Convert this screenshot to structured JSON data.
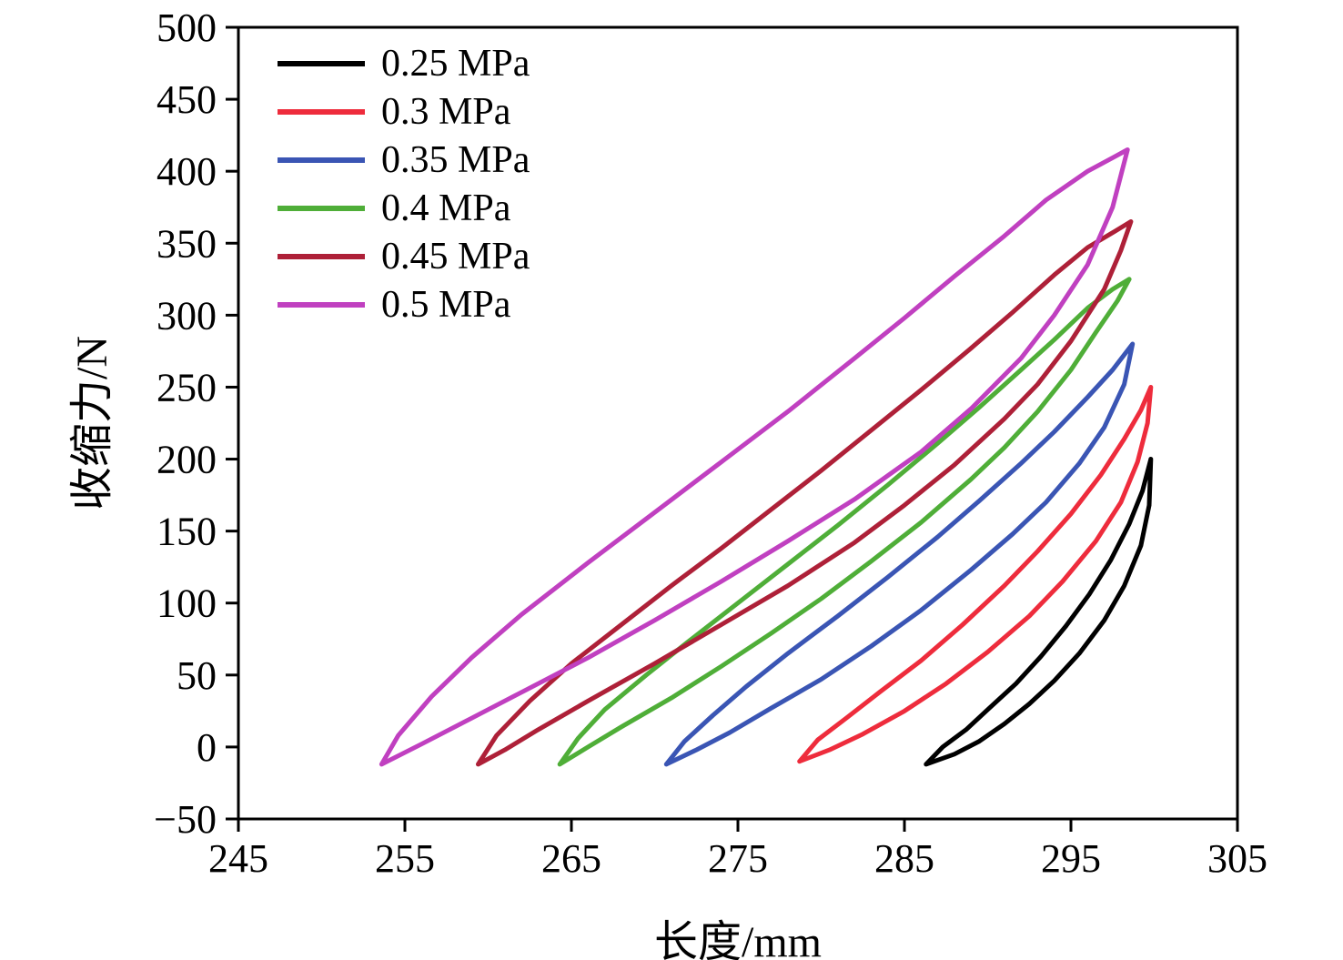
{
  "chart_data": {
    "type": "line",
    "title": "",
    "xlabel": "长度/mm",
    "ylabel": "收缩力/N",
    "xlim": [
      245,
      305
    ],
    "ylim": [
      -50,
      500
    ],
    "xticks": [
      245,
      255,
      265,
      275,
      285,
      295,
      305
    ],
    "yticks": [
      -50,
      0,
      50,
      100,
      150,
      200,
      250,
      300,
      350,
      400,
      450,
      500
    ],
    "grid": false,
    "legend_position": "top-left-inside",
    "axis_color": "#000000",
    "series": [
      {
        "name": "0.25 MPa",
        "color": "#000000",
        "loop_lower": [
          [
            286.3,
            -12
          ],
          [
            288,
            -5
          ],
          [
            289.5,
            4
          ],
          [
            291,
            16
          ],
          [
            292.5,
            30
          ],
          [
            294,
            46
          ],
          [
            295.5,
            65
          ],
          [
            297,
            88
          ],
          [
            298.2,
            112
          ],
          [
            299.2,
            140
          ],
          [
            299.7,
            168
          ],
          [
            299.8,
            200
          ]
        ],
        "loop_upper": [
          [
            286.3,
            -12
          ],
          [
            287.3,
            0
          ],
          [
            288.7,
            12
          ],
          [
            290.1,
            27
          ],
          [
            291.7,
            44
          ],
          [
            293.2,
            63
          ],
          [
            294.7,
            84
          ],
          [
            296.1,
            106
          ],
          [
            297.4,
            130
          ],
          [
            298.5,
            155
          ],
          [
            299.3,
            178
          ],
          [
            299.8,
            200
          ]
        ]
      },
      {
        "name": "0.3 MPa",
        "color": "#ee2c3c",
        "loop_lower": [
          [
            278.7,
            -10
          ],
          [
            280.5,
            -2
          ],
          [
            282.5,
            9
          ],
          [
            285,
            25
          ],
          [
            287.5,
            44
          ],
          [
            290,
            66
          ],
          [
            292.5,
            91
          ],
          [
            294.5,
            115
          ],
          [
            296.5,
            143
          ],
          [
            298,
            170
          ],
          [
            299,
            198
          ],
          [
            299.6,
            225
          ],
          [
            299.8,
            250
          ]
        ],
        "loop_upper": [
          [
            278.7,
            -10
          ],
          [
            279.8,
            5
          ],
          [
            281.5,
            20
          ],
          [
            283.5,
            38
          ],
          [
            286,
            60
          ],
          [
            288.5,
            85
          ],
          [
            291,
            112
          ],
          [
            293,
            136
          ],
          [
            295,
            162
          ],
          [
            296.8,
            189
          ],
          [
            298.2,
            214
          ],
          [
            299.2,
            234
          ],
          [
            299.8,
            250
          ]
        ]
      },
      {
        "name": "0.35 MPa",
        "color": "#3a55b4",
        "loop_lower": [
          [
            270.7,
            -12
          ],
          [
            272.5,
            -2
          ],
          [
            274.5,
            10
          ],
          [
            277,
            27
          ],
          [
            280,
            47
          ],
          [
            283,
            70
          ],
          [
            286,
            95
          ],
          [
            289,
            123
          ],
          [
            291.5,
            148
          ],
          [
            293.5,
            170
          ],
          [
            295.5,
            197
          ],
          [
            297,
            222
          ],
          [
            298.2,
            252
          ],
          [
            298.7,
            280
          ]
        ],
        "loop_upper": [
          [
            270.7,
            -12
          ],
          [
            271.8,
            4
          ],
          [
            273.5,
            22
          ],
          [
            275.5,
            42
          ],
          [
            278,
            65
          ],
          [
            281,
            91
          ],
          [
            284,
            118
          ],
          [
            287,
            146
          ],
          [
            289.5,
            171
          ],
          [
            292,
            197
          ],
          [
            294,
            219
          ],
          [
            296,
            243
          ],
          [
            297.5,
            262
          ],
          [
            298.7,
            280
          ]
        ]
      },
      {
        "name": "0.4 MPa",
        "color": "#4fae38",
        "loop_lower": [
          [
            264.3,
            -12
          ],
          [
            266,
            0
          ],
          [
            268,
            14
          ],
          [
            271,
            34
          ],
          [
            274,
            56
          ],
          [
            277,
            79
          ],
          [
            280,
            103
          ],
          [
            283,
            129
          ],
          [
            286,
            156
          ],
          [
            289,
            186
          ],
          [
            291,
            208
          ],
          [
            293,
            233
          ],
          [
            295,
            262
          ],
          [
            296.5,
            288
          ],
          [
            297.8,
            310
          ],
          [
            298.5,
            325
          ]
        ],
        "loop_upper": [
          [
            264.3,
            -12
          ],
          [
            265.4,
            6
          ],
          [
            267,
            26
          ],
          [
            269.5,
            50
          ],
          [
            272,
            73
          ],
          [
            275,
            100
          ],
          [
            278,
            127
          ],
          [
            281,
            154
          ],
          [
            284,
            182
          ],
          [
            287,
            211
          ],
          [
            289.5,
            236
          ],
          [
            292,
            262
          ],
          [
            294,
            283
          ],
          [
            296,
            305
          ],
          [
            297.5,
            318
          ],
          [
            298.5,
            325
          ]
        ]
      },
      {
        "name": "0.45 MPa",
        "color": "#ae2038",
        "loop_lower": [
          [
            259.4,
            -12
          ],
          [
            261,
            -2
          ],
          [
            263,
            12
          ],
          [
            266,
            32
          ],
          [
            270,
            58
          ],
          [
            274,
            85
          ],
          [
            278,
            112
          ],
          [
            282,
            142
          ],
          [
            285,
            168
          ],
          [
            288,
            196
          ],
          [
            291,
            228
          ],
          [
            293,
            252
          ],
          [
            295,
            282
          ],
          [
            297,
            318
          ],
          [
            298,
            345
          ],
          [
            298.6,
            365
          ]
        ],
        "loop_upper": [
          [
            259.4,
            -12
          ],
          [
            260.5,
            8
          ],
          [
            262.5,
            32
          ],
          [
            265,
            58
          ],
          [
            268,
            85
          ],
          [
            271,
            112
          ],
          [
            274,
            138
          ],
          [
            277,
            165
          ],
          [
            280,
            192
          ],
          [
            283,
            220
          ],
          [
            286,
            248
          ],
          [
            289,
            277
          ],
          [
            291.5,
            302
          ],
          [
            294,
            328
          ],
          [
            296,
            347
          ],
          [
            297.6,
            358
          ],
          [
            298.6,
            365
          ]
        ]
      },
      {
        "name": "0.5 MPa",
        "color": "#c040c0",
        "loop_lower": [
          [
            253.6,
            -12
          ],
          [
            256,
            2
          ],
          [
            259,
            20
          ],
          [
            262,
            38
          ],
          [
            266,
            62
          ],
          [
            270,
            88
          ],
          [
            274,
            115
          ],
          [
            278,
            143
          ],
          [
            282,
            172
          ],
          [
            286,
            205
          ],
          [
            289,
            235
          ],
          [
            292,
            270
          ],
          [
            294,
            300
          ],
          [
            296,
            335
          ],
          [
            297.5,
            375
          ],
          [
            298.4,
            415
          ]
        ],
        "loop_upper": [
          [
            253.6,
            -12
          ],
          [
            254.6,
            8
          ],
          [
            256.6,
            35
          ],
          [
            259,
            62
          ],
          [
            262,
            92
          ],
          [
            266,
            128
          ],
          [
            270,
            163
          ],
          [
            274,
            198
          ],
          [
            278,
            233
          ],
          [
            282,
            270
          ],
          [
            285,
            298
          ],
          [
            288,
            327
          ],
          [
            291,
            355
          ],
          [
            293.5,
            380
          ],
          [
            296,
            400
          ],
          [
            297.6,
            410
          ],
          [
            298.4,
            415
          ]
        ]
      }
    ]
  }
}
